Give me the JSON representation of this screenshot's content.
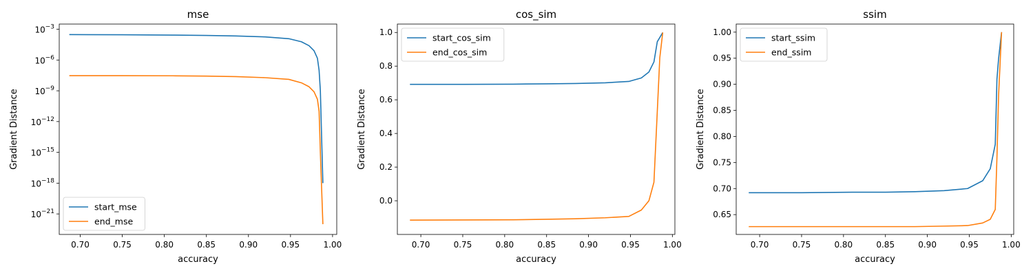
{
  "chart_data": [
    {
      "type": "line",
      "title": "mse",
      "xlabel": "accuracy",
      "ylabel": "Gradient Distance",
      "xlim": [
        0.675,
        1.005
      ],
      "ylim": [
        1e-23,
        0.0032
      ],
      "yscale": "log",
      "x_ticks": [
        0.7,
        0.75,
        0.8,
        0.85,
        0.9,
        0.95,
        1.0
      ],
      "x_tick_labels": [
        "0.70",
        "0.75",
        "0.80",
        "0.85",
        "0.90",
        "0.95",
        "1.00"
      ],
      "y_ticks": [
        1e-21,
        1e-18,
        1e-15,
        1e-12,
        1e-09,
        1e-06,
        0.001
      ],
      "y_tick_labels": [
        {
          "base": "10",
          "exp": "−21"
        },
        {
          "base": "10",
          "exp": "−18"
        },
        {
          "base": "10",
          "exp": "−15"
        },
        {
          "base": "10",
          "exp": "−12"
        },
        {
          "base": "10",
          "exp": "−9"
        },
        {
          "base": "10",
          "exp": "−6"
        },
        {
          "base": "10",
          "exp": "−3"
        }
      ],
      "legend_position": "lower-left",
      "series": [
        {
          "name": "start_mse",
          "color": "#1f77b4",
          "x": [
            0.687,
            0.75,
            0.81,
            0.85,
            0.885,
            0.92,
            0.948,
            0.963,
            0.972,
            0.978,
            0.982,
            0.984,
            0.9855,
            0.9885
          ],
          "y": [
            0.0003,
            0.00029,
            0.00027,
            0.00025,
            0.00022,
            0.00018,
            0.00012,
            6e-05,
            2.5e-05,
            8e-06,
            1.5e-06,
            1e-07,
            1e-09,
            1e-18
          ]
        },
        {
          "name": "end_mse",
          "color": "#ff7f0e",
          "x": [
            0.687,
            0.75,
            0.81,
            0.85,
            0.885,
            0.92,
            0.948,
            0.963,
            0.972,
            0.978,
            0.982,
            0.984,
            0.9855,
            0.9885
          ],
          "y": [
            3e-08,
            3e-08,
            2.9e-08,
            2.7e-08,
            2.4e-08,
            1.9e-08,
            1.3e-08,
            6e-09,
            2.5e-09,
            8e-10,
            1.5e-10,
            1e-11,
            1e-15,
            1e-22
          ]
        }
      ]
    },
    {
      "type": "line",
      "title": "cos_sim",
      "xlabel": "accuracy",
      "ylabel": "Gradient Distance",
      "xlim": [
        0.672,
        1.003
      ],
      "ylim": [
        -0.2,
        1.05
      ],
      "yscale": "linear",
      "x_ticks": [
        0.7,
        0.75,
        0.8,
        0.85,
        0.9,
        0.95,
        1.0
      ],
      "x_tick_labels": [
        "0.70",
        "0.75",
        "0.80",
        "0.85",
        "0.90",
        "0.95",
        "1.00"
      ],
      "y_ticks": [
        0.0,
        0.2,
        0.4,
        0.6,
        0.8,
        1.0
      ],
      "y_tick_labels": [
        "0.0",
        "0.2",
        "0.4",
        "0.6",
        "0.8",
        "1.0"
      ],
      "legend_position": "upper-left",
      "series": [
        {
          "name": "start_cos_sim",
          "color": "#1f77b4",
          "x": [
            0.687,
            0.75,
            0.81,
            0.85,
            0.885,
            0.92,
            0.948,
            0.963,
            0.972,
            0.978,
            0.982,
            0.985,
            0.9885
          ],
          "y": [
            0.692,
            0.692,
            0.693,
            0.695,
            0.697,
            0.701,
            0.709,
            0.73,
            0.765,
            0.825,
            0.945,
            0.97,
            1.0
          ]
        },
        {
          "name": "end_cos_sim",
          "color": "#ff7f0e",
          "x": [
            0.687,
            0.75,
            0.81,
            0.85,
            0.885,
            0.92,
            0.948,
            0.963,
            0.972,
            0.978,
            0.982,
            0.985,
            0.9885
          ],
          "y": [
            -0.115,
            -0.114,
            -0.113,
            -0.11,
            -0.107,
            -0.101,
            -0.093,
            -0.055,
            0.0,
            0.11,
            0.53,
            0.85,
            1.0
          ]
        }
      ]
    },
    {
      "type": "line",
      "title": "ssim",
      "xlabel": "accuracy",
      "ylabel": "Gradient Distance",
      "xlim": [
        0.672,
        1.003
      ],
      "ylim": [
        0.612,
        1.0155
      ],
      "yscale": "linear",
      "x_ticks": [
        0.7,
        0.75,
        0.8,
        0.85,
        0.9,
        0.95,
        1.0
      ],
      "x_tick_labels": [
        "0.70",
        "0.75",
        "0.80",
        "0.85",
        "0.90",
        "0.95",
        "1.00"
      ],
      "y_ticks": [
        0.65,
        0.7,
        0.75,
        0.8,
        0.85,
        0.9,
        0.95,
        1.0
      ],
      "y_tick_labels": [
        "0.65",
        "0.70",
        "0.75",
        "0.80",
        "0.85",
        "0.90",
        "0.95",
        "1.00"
      ],
      "legend_position": "upper-left",
      "series": [
        {
          "name": "start_ssim",
          "color": "#1f77b4",
          "x": [
            0.687,
            0.75,
            0.81,
            0.85,
            0.885,
            0.92,
            0.948,
            0.966,
            0.975,
            0.981,
            0.983,
            0.985,
            0.9885
          ],
          "y": [
            0.692,
            0.692,
            0.693,
            0.693,
            0.694,
            0.696,
            0.7,
            0.715,
            0.738,
            0.785,
            0.91,
            0.95,
            1.0
          ]
        },
        {
          "name": "end_ssim",
          "color": "#ff7f0e",
          "x": [
            0.687,
            0.75,
            0.81,
            0.85,
            0.885,
            0.92,
            0.948,
            0.966,
            0.975,
            0.981,
            0.983,
            0.985,
            0.9885
          ],
          "y": [
            0.627,
            0.627,
            0.627,
            0.627,
            0.627,
            0.628,
            0.629,
            0.634,
            0.641,
            0.66,
            0.76,
            0.88,
            1.0
          ]
        }
      ]
    }
  ]
}
